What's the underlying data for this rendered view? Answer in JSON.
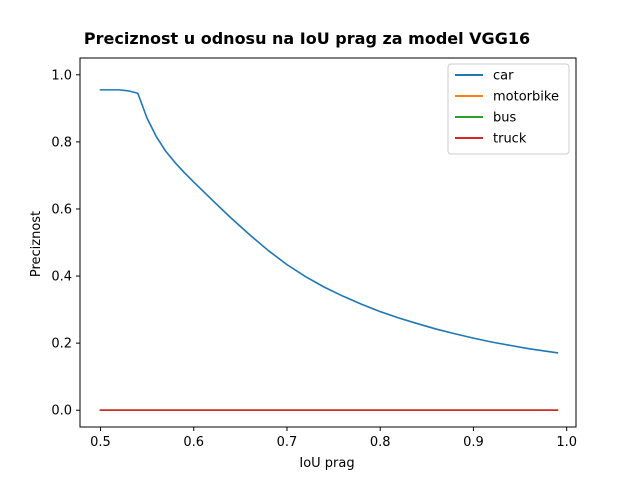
{
  "chart_data": {
    "type": "line",
    "title": "Preciznost u odnosu na IoU prag za model VGG16",
    "xlabel": "IoU prag",
    "ylabel": "Preciznost",
    "xlim": [
      0.478,
      1.01
    ],
    "ylim": [
      -0.05,
      1.05
    ],
    "xticks": [
      0.5,
      0.6,
      0.7,
      0.8,
      0.9,
      1.0
    ],
    "xtick_labels": [
      "0.5",
      "0.6",
      "0.7",
      "0.8",
      "0.9",
      "1.0"
    ],
    "yticks": [
      0.0,
      0.2,
      0.4,
      0.6,
      0.8,
      1.0
    ],
    "ytick_labels": [
      "0.0",
      "0.2",
      "0.4",
      "0.6",
      "0.8",
      "1.0"
    ],
    "grid": false,
    "legend_position": "top-right",
    "series": [
      {
        "name": "car",
        "color": "#1f77b4",
        "x": [
          0.5,
          0.51,
          0.52,
          0.53,
          0.54,
          0.55,
          0.56,
          0.57,
          0.58,
          0.59,
          0.6,
          0.62,
          0.64,
          0.66,
          0.68,
          0.7,
          0.72,
          0.74,
          0.76,
          0.78,
          0.8,
          0.82,
          0.84,
          0.86,
          0.88,
          0.9,
          0.92,
          0.94,
          0.96,
          0.99
        ],
        "values": [
          0.955,
          0.955,
          0.955,
          0.952,
          0.945,
          0.87,
          0.815,
          0.772,
          0.738,
          0.708,
          0.68,
          0.626,
          0.573,
          0.523,
          0.476,
          0.434,
          0.398,
          0.367,
          0.34,
          0.316,
          0.294,
          0.275,
          0.258,
          0.242,
          0.228,
          0.215,
          0.203,
          0.193,
          0.183,
          0.171
        ]
      },
      {
        "name": "motorbike",
        "color": "#ff7f0e",
        "x": [
          0.5,
          0.99
        ],
        "values": [
          0.0,
          0.0
        ]
      },
      {
        "name": "bus",
        "color": "#2ca02c",
        "x": [
          0.5,
          0.99
        ],
        "values": [
          0.0,
          0.0
        ]
      },
      {
        "name": "truck",
        "color": "#d62728",
        "x": [
          0.5,
          0.99
        ],
        "values": [
          0.0,
          0.0
        ]
      }
    ]
  }
}
